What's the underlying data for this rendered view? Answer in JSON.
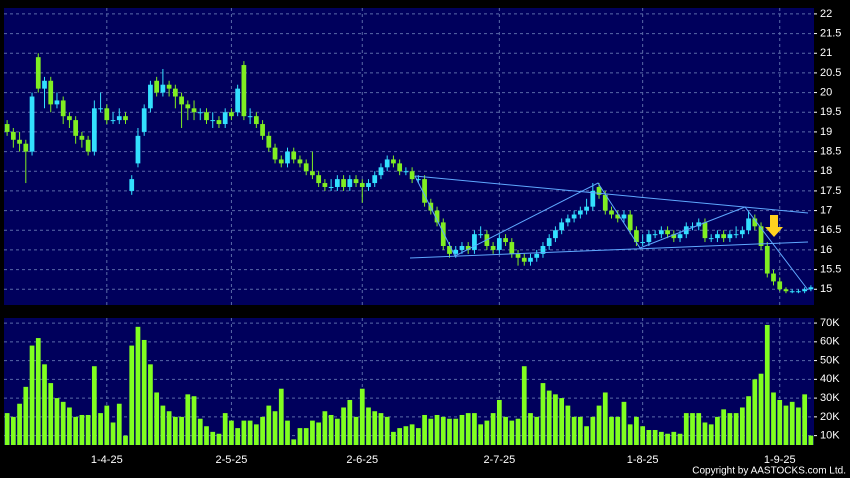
{
  "chart_data": [
    {
      "type": "candlestick",
      "up_color": "#33e0ff",
      "down_color": "#80ee22",
      "grid": true,
      "ylim": [
        14.6,
        22.15
      ],
      "yticks": [
        15,
        15.5,
        16,
        16.5,
        17,
        17.5,
        18,
        18.5,
        19,
        19.5,
        20,
        20.5,
        21,
        21.5,
        22
      ],
      "open": [
        19.2,
        19.0,
        18.8,
        18.7,
        18.5,
        20.9,
        20.1,
        20.3,
        19.7,
        19.8,
        19.4,
        19.3,
        18.9,
        18.8,
        18.5,
        19.6,
        19.6,
        19.3,
        19.3,
        19.4,
        17.5,
        18.2,
        19.0,
        19.6,
        20.3,
        20.0,
        20.2,
        20.1,
        19.9,
        19.7,
        19.6,
        19.5,
        19.5,
        19.3,
        19.3,
        19.2,
        19.5,
        19.5,
        20.7,
        19.4,
        19.4,
        19.2,
        18.9,
        18.6,
        18.3,
        18.2,
        18.5,
        18.3,
        18.2,
        18.0,
        17.9,
        17.7,
        17.6,
        17.6,
        17.8,
        17.6,
        17.8,
        17.7,
        17.6,
        17.7,
        17.9,
        18.1,
        18.3,
        18.2,
        18.0,
        18.0,
        17.8,
        17.8,
        17.2,
        17.0,
        16.7,
        16.1,
        15.9,
        16.0,
        16.1,
        16.0,
        16.4,
        16.4,
        16.1,
        16.0,
        16.3,
        16.2,
        15.9,
        15.8,
        15.7,
        15.8,
        15.9,
        16.1,
        16.3,
        16.5,
        16.7,
        16.8,
        16.9,
        17.0,
        17.1,
        17.6,
        17.4,
        17.0,
        16.9,
        16.8,
        16.9,
        16.5,
        16.2,
        16.2,
        16.4,
        16.4,
        16.5,
        16.4,
        16.3,
        16.4,
        16.6,
        16.6,
        16.7,
        16.3,
        16.3,
        16.4,
        16.3,
        16.4,
        16.4,
        16.5,
        16.8,
        16.6,
        16.1,
        15.4,
        15.2,
        15.0,
        14.95,
        14.95,
        14.95,
        15.0
      ],
      "high": [
        19.3,
        19.1,
        19.0,
        18.8,
        20.0,
        21.0,
        20.4,
        20.4,
        20.0,
        19.9,
        19.5,
        19.4,
        19.0,
        18.9,
        19.8,
        20.0,
        19.7,
        19.5,
        19.6,
        19.5,
        17.9,
        19.1,
        19.7,
        20.3,
        20.4,
        20.6,
        20.3,
        20.2,
        20.0,
        19.8,
        19.8,
        19.6,
        19.6,
        19.5,
        19.4,
        19.6,
        19.6,
        20.2,
        20.8,
        19.6,
        19.5,
        19.3,
        19.0,
        18.7,
        18.4,
        18.6,
        18.6,
        18.4,
        18.3,
        18.5,
        18.0,
        17.8,
        17.8,
        17.9,
        17.9,
        17.9,
        17.9,
        17.8,
        17.8,
        18.0,
        18.2,
        18.4,
        18.4,
        18.3,
        18.1,
        18.1,
        17.9,
        17.9,
        17.3,
        17.1,
        16.8,
        16.2,
        16.1,
        16.2,
        16.2,
        16.5,
        16.6,
        16.5,
        16.2,
        16.4,
        16.4,
        16.3,
        16.0,
        15.9,
        15.9,
        16.0,
        16.2,
        16.4,
        16.6,
        16.8,
        16.9,
        17.0,
        17.1,
        17.3,
        17.7,
        17.7,
        17.5,
        17.1,
        17.0,
        17.0,
        17.0,
        16.6,
        16.4,
        16.5,
        16.5,
        16.6,
        16.6,
        16.5,
        16.5,
        16.7,
        16.7,
        16.8,
        16.8,
        16.4,
        16.5,
        16.5,
        16.5,
        16.6,
        16.6,
        17.0,
        16.9,
        16.7,
        16.2,
        15.5,
        15.3,
        15.05,
        15.0,
        15.0,
        15.05,
        15.1
      ],
      "low": [
        18.9,
        18.6,
        18.5,
        17.7,
        18.4,
        20.0,
        19.6,
        19.5,
        19.6,
        19.2,
        19.1,
        18.7,
        18.6,
        18.4,
        18.4,
        19.5,
        19.2,
        19.2,
        19.2,
        19.2,
        17.4,
        18.1,
        18.9,
        19.5,
        19.9,
        19.9,
        19.9,
        19.6,
        19.1,
        19.3,
        19.3,
        19.3,
        19.2,
        19.1,
        19.1,
        19.1,
        19.3,
        19.4,
        19.3,
        19.2,
        19.1,
        18.8,
        18.5,
        18.2,
        18.1,
        18.1,
        18.2,
        18.1,
        17.9,
        17.8,
        17.6,
        17.5,
        17.5,
        17.5,
        17.5,
        17.5,
        17.6,
        17.2,
        17.5,
        17.6,
        17.8,
        18.0,
        18.1,
        17.9,
        17.9,
        17.7,
        17.7,
        17.1,
        16.9,
        16.6,
        16.0,
        15.8,
        15.8,
        15.9,
        15.9,
        15.9,
        16.3,
        16.0,
        15.9,
        15.9,
        16.1,
        15.8,
        15.6,
        15.6,
        15.6,
        15.7,
        15.8,
        16.0,
        16.2,
        16.4,
        16.6,
        16.7,
        16.8,
        16.9,
        17.0,
        17.3,
        16.9,
        16.8,
        16.7,
        16.7,
        16.4,
        16.1,
        16.1,
        16.1,
        16.3,
        16.3,
        16.3,
        16.2,
        16.2,
        16.3,
        16.5,
        16.5,
        16.2,
        16.2,
        16.2,
        16.2,
        16.2,
        16.3,
        16.3,
        16.4,
        16.5,
        16.0,
        15.3,
        15.1,
        14.95,
        14.9,
        14.9,
        14.9,
        14.9,
        14.95
      ],
      "close": [
        19.0,
        18.8,
        18.7,
        18.5,
        19.9,
        20.1,
        20.3,
        19.7,
        19.8,
        19.4,
        19.3,
        18.9,
        18.8,
        18.5,
        19.6,
        19.6,
        19.3,
        19.3,
        19.4,
        19.3,
        17.8,
        18.9,
        19.6,
        20.2,
        20.0,
        20.2,
        20.1,
        19.9,
        19.7,
        19.6,
        19.5,
        19.5,
        19.3,
        19.3,
        19.2,
        19.5,
        19.4,
        20.1,
        19.4,
        19.4,
        19.2,
        18.9,
        18.6,
        18.3,
        18.2,
        18.5,
        18.3,
        18.2,
        18.0,
        17.9,
        17.7,
        17.6,
        17.6,
        17.8,
        17.6,
        17.8,
        17.7,
        17.6,
        17.7,
        17.9,
        18.1,
        18.3,
        18.2,
        18.0,
        18.0,
        17.8,
        17.8,
        17.2,
        17.0,
        16.7,
        16.1,
        15.9,
        16.0,
        16.1,
        16.0,
        16.4,
        16.4,
        16.1,
        16.0,
        16.3,
        16.2,
        15.9,
        15.8,
        15.7,
        15.8,
        15.9,
        16.1,
        16.3,
        16.5,
        16.7,
        16.8,
        16.9,
        17.0,
        17.1,
        17.5,
        17.4,
        17.0,
        16.9,
        16.8,
        16.9,
        16.5,
        16.2,
        16.2,
        16.4,
        16.4,
        16.5,
        16.4,
        16.3,
        16.4,
        16.6,
        16.6,
        16.7,
        16.3,
        16.3,
        16.4,
        16.3,
        16.4,
        16.4,
        16.5,
        16.8,
        16.6,
        16.1,
        15.4,
        15.2,
        15.0,
        14.95,
        14.95,
        14.95,
        15.0,
        15.05
      ]
    },
    {
      "type": "bar",
      "color": "#80ff20",
      "grid": true,
      "copyright": "Copyright by AASTOCKS.com Ltd.",
      "ylim": [
        5000,
        72700
      ],
      "yticks": [
        {
          "value": 10000,
          "label": "10K"
        },
        {
          "value": 20000,
          "label": "20K"
        },
        {
          "value": 30000,
          "label": "30K"
        },
        {
          "value": 40000,
          "label": "40K"
        },
        {
          "value": 50000,
          "label": "50K"
        },
        {
          "value": 60000,
          "label": "60K"
        },
        {
          "value": 70000,
          "label": "70K"
        }
      ],
      "categories": [
        null,
        null,
        null,
        null,
        null,
        null,
        null,
        null,
        null,
        null,
        null,
        null,
        null,
        null,
        null,
        null,
        "1-4-25",
        null,
        null,
        null,
        null,
        null,
        null,
        null,
        null,
        null,
        null,
        null,
        null,
        null,
        null,
        null,
        null,
        null,
        null,
        null,
        "2-5-25",
        null,
        null,
        null,
        null,
        null,
        null,
        null,
        null,
        null,
        null,
        null,
        null,
        null,
        null,
        null,
        null,
        null,
        null,
        null,
        null,
        "2-6-25",
        null,
        null,
        null,
        null,
        null,
        null,
        null,
        null,
        null,
        null,
        null,
        null,
        null,
        null,
        null,
        null,
        null,
        null,
        null,
        null,
        null,
        "2-7-25",
        null,
        null,
        null,
        null,
        null,
        null,
        null,
        null,
        null,
        null,
        null,
        null,
        null,
        null,
        null,
        null,
        null,
        null,
        null,
        null,
        null,
        null,
        "1-8-25",
        null,
        null,
        null,
        null,
        null,
        null,
        null,
        null,
        null,
        null,
        null,
        null,
        null,
        null,
        null,
        null,
        null,
        null,
        null,
        null,
        null,
        "1-9-25",
        null,
        null,
        null,
        null,
        null
      ],
      "values": [
        22000,
        20000,
        27000,
        36000,
        58000,
        62000,
        48000,
        38000,
        30000,
        28000,
        25000,
        20000,
        21000,
        21000,
        47000,
        22000,
        26000,
        17000,
        27000,
        10000,
        58000,
        68000,
        61000,
        48000,
        33000,
        26000,
        23000,
        20000,
        20000,
        32000,
        31000,
        19000,
        15000,
        12000,
        11000,
        22000,
        18000,
        14000,
        18000,
        18000,
        16000,
        20000,
        26000,
        23000,
        35000,
        18000,
        8000,
        14000,
        14000,
        18000,
        17000,
        23000,
        21000,
        19000,
        25000,
        29000,
        20000,
        35000,
        25000,
        23000,
        22000,
        20000,
        12000,
        14000,
        15000,
        16000,
        14000,
        21000,
        19000,
        21000,
        20000,
        19000,
        19000,
        21000,
        22000,
        22000,
        16000,
        18000,
        22000,
        29000,
        20000,
        18000,
        19000,
        47000,
        22000,
        20000,
        38000,
        34000,
        32000,
        30000,
        26000,
        20000,
        20000,
        15000,
        20000,
        26000,
        33000,
        20000,
        20000,
        28000,
        16000,
        20000,
        15000,
        13000,
        13000,
        12000,
        11000,
        12000,
        11000,
        22000,
        22000,
        22000,
        17000,
        16000,
        20000,
        24000,
        22000,
        22000,
        25000,
        31000,
        40000,
        43000,
        69000,
        33000,
        29000,
        26000,
        28000,
        25000,
        32000,
        10000
      ]
    }
  ]
}
